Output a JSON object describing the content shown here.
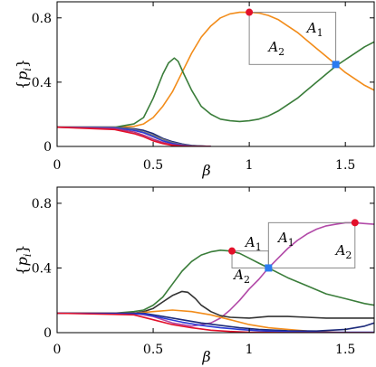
{
  "chart_data": [
    {
      "type": "line",
      "xlabel": "β",
      "ylabel": "{p_i}",
      "xlim": [
        0,
        1.65
      ],
      "ylim": [
        0,
        0.9
      ],
      "xticks": [
        "0",
        "0.5",
        "1",
        "1.5"
      ],
      "yticks": [
        "0",
        "0.4",
        "0.8"
      ],
      "grid": false,
      "series": [
        {
          "color": "#f28c1a",
          "x": [
            0,
            0.3,
            0.4,
            0.45,
            0.5,
            0.55,
            0.6,
            0.65,
            0.7,
            0.75,
            0.8,
            0.85,
            0.9,
            0.95,
            1.0,
            1.05,
            1.1,
            1.15,
            1.2,
            1.25,
            1.3,
            1.35,
            1.4,
            1.45,
            1.5,
            1.55,
            1.6,
            1.65
          ],
          "y": [
            0.12,
            0.12,
            0.125,
            0.14,
            0.18,
            0.25,
            0.34,
            0.46,
            0.58,
            0.68,
            0.75,
            0.8,
            0.825,
            0.835,
            0.835,
            0.83,
            0.815,
            0.79,
            0.75,
            0.71,
            0.66,
            0.61,
            0.56,
            0.51,
            0.46,
            0.42,
            0.38,
            0.35
          ]
        },
        {
          "color": "#3a7d3a",
          "x": [
            0,
            0.3,
            0.4,
            0.45,
            0.5,
            0.55,
            0.58,
            0.61,
            0.63,
            0.66,
            0.7,
            0.75,
            0.8,
            0.85,
            0.9,
            0.95,
            1.0,
            1.05,
            1.1,
            1.15,
            1.2,
            1.25,
            1.3,
            1.35,
            1.4,
            1.45,
            1.5,
            1.55,
            1.6,
            1.65
          ],
          "y": [
            0.12,
            0.12,
            0.14,
            0.18,
            0.3,
            0.45,
            0.52,
            0.55,
            0.53,
            0.45,
            0.35,
            0.25,
            0.2,
            0.17,
            0.16,
            0.155,
            0.16,
            0.17,
            0.19,
            0.22,
            0.26,
            0.3,
            0.35,
            0.4,
            0.45,
            0.5,
            0.54,
            0.58,
            0.62,
            0.65
          ]
        },
        {
          "color": "#1c2a7a",
          "x": [
            0,
            0.3,
            0.4,
            0.45,
            0.5,
            0.55,
            0.6,
            0.65,
            0.7,
            0.8
          ],
          "y": [
            0.12,
            0.12,
            0.11,
            0.1,
            0.08,
            0.05,
            0.03,
            0.015,
            0.006,
            0.0
          ]
        },
        {
          "color": "#777777",
          "x": [
            0,
            0.3,
            0.4,
            0.45,
            0.5,
            0.55,
            0.6,
            0.65,
            0.7,
            0.8
          ],
          "y": [
            0.12,
            0.12,
            0.105,
            0.09,
            0.07,
            0.045,
            0.025,
            0.012,
            0.005,
            0.0
          ]
        },
        {
          "color": "#2b3bd6",
          "x": [
            0,
            0.3,
            0.4,
            0.45,
            0.5,
            0.55,
            0.6,
            0.65,
            0.7,
            0.8
          ],
          "y": [
            0.12,
            0.115,
            0.1,
            0.085,
            0.06,
            0.035,
            0.018,
            0.008,
            0.003,
            0.0
          ]
        },
        {
          "color": "#b0337d",
          "x": [
            0,
            0.3,
            0.4,
            0.45,
            0.5,
            0.55,
            0.6,
            0.65,
            0.7,
            0.8
          ],
          "y": [
            0.12,
            0.11,
            0.09,
            0.07,
            0.045,
            0.025,
            0.01,
            0.004,
            0.001,
            0.0
          ]
        },
        {
          "color": "#e3102a",
          "x": [
            0,
            0.3,
            0.4,
            0.45,
            0.5,
            0.55,
            0.6,
            0.65,
            0.7,
            0.8
          ],
          "y": [
            0.12,
            0.105,
            0.08,
            0.06,
            0.035,
            0.018,
            0.007,
            0.002,
            0.0,
            0.0
          ]
        }
      ],
      "markers": [
        {
          "shape": "circle",
          "color": "#e3102a",
          "x": 1.0,
          "y": 0.835
        },
        {
          "shape": "square",
          "color": "#2b7bf0",
          "x": 1.45,
          "y": 0.51
        }
      ],
      "boxes": [
        {
          "x0": 1.0,
          "x1": 1.45,
          "y0": 0.51,
          "y1": 0.835
        }
      ],
      "annotations": [
        {
          "main": "A",
          "sub": "1",
          "x": 1.3,
          "y": 0.71
        },
        {
          "main": "A",
          "sub": "2",
          "x": 1.1,
          "y": 0.59
        }
      ]
    },
    {
      "type": "line",
      "xlabel": "β",
      "ylabel": "{p_i}",
      "xlim": [
        0,
        1.65
      ],
      "ylim": [
        0,
        0.9
      ],
      "xticks": [
        "0",
        "0.5",
        "1",
        "1.5"
      ],
      "yticks": [
        "0",
        "0.4",
        "0.8"
      ],
      "grid": false,
      "series": [
        {
          "color": "#3a7d3a",
          "x": [
            0,
            0.3,
            0.4,
            0.45,
            0.5,
            0.55,
            0.6,
            0.65,
            0.7,
            0.75,
            0.8,
            0.85,
            0.9,
            0.95,
            1.0,
            1.05,
            1.1,
            1.15,
            1.2,
            1.3,
            1.4,
            1.5,
            1.6,
            1.65
          ],
          "y": [
            0.12,
            0.12,
            0.13,
            0.14,
            0.17,
            0.22,
            0.3,
            0.38,
            0.44,
            0.48,
            0.5,
            0.51,
            0.505,
            0.49,
            0.46,
            0.43,
            0.4,
            0.37,
            0.34,
            0.29,
            0.24,
            0.21,
            0.18,
            0.17
          ]
        },
        {
          "color": "#b24aa8",
          "x": [
            0,
            0.4,
            0.5,
            0.6,
            0.7,
            0.8,
            0.85,
            0.9,
            0.95,
            1.0,
            1.05,
            1.1,
            1.15,
            1.2,
            1.25,
            1.3,
            1.35,
            1.4,
            1.45,
            1.5,
            1.55,
            1.6,
            1.65
          ],
          "y": [
            0.12,
            0.12,
            0.1,
            0.06,
            0.04,
            0.06,
            0.09,
            0.14,
            0.2,
            0.27,
            0.33,
            0.4,
            0.46,
            0.52,
            0.57,
            0.61,
            0.64,
            0.66,
            0.67,
            0.68,
            0.68,
            0.675,
            0.67
          ]
        },
        {
          "color": "#333333",
          "x": [
            0,
            0.4,
            0.45,
            0.5,
            0.55,
            0.6,
            0.65,
            0.68,
            0.72,
            0.75,
            0.8,
            0.85,
            0.9,
            1.0,
            1.1,
            1.2,
            1.3,
            1.4,
            1.5,
            1.6,
            1.65
          ],
          "y": [
            0.12,
            0.12,
            0.13,
            0.15,
            0.19,
            0.23,
            0.255,
            0.25,
            0.21,
            0.17,
            0.13,
            0.105,
            0.095,
            0.09,
            0.1,
            0.1,
            0.095,
            0.09,
            0.09,
            0.09,
            0.09
          ]
        },
        {
          "color": "#f28c1a",
          "x": [
            0,
            0.4,
            0.5,
            0.6,
            0.7,
            0.8,
            0.9,
            1.0,
            1.1,
            1.2,
            1.3,
            1.4,
            1.5,
            1.6,
            1.65
          ],
          "y": [
            0.12,
            0.12,
            0.13,
            0.14,
            0.13,
            0.11,
            0.08,
            0.05,
            0.03,
            0.02,
            0.01,
            0.005,
            0.0,
            0.0,
            0.0
          ]
        },
        {
          "color": "#1c2a7a",
          "x": [
            0,
            0.45,
            0.55,
            0.65,
            0.75,
            0.85,
            0.95,
            1.05,
            1.2,
            1.35,
            1.5,
            1.6,
            1.65
          ],
          "y": [
            0.12,
            0.12,
            0.1,
            0.08,
            0.06,
            0.045,
            0.03,
            0.02,
            0.012,
            0.01,
            0.02,
            0.04,
            0.06
          ]
        },
        {
          "color": "#2b3bd6",
          "x": [
            0,
            0.45,
            0.55,
            0.65,
            0.75,
            0.85,
            0.95,
            1.05,
            1.2,
            1.35,
            1.5,
            1.65
          ],
          "y": [
            0.12,
            0.115,
            0.09,
            0.065,
            0.045,
            0.03,
            0.02,
            0.012,
            0.006,
            0.003,
            0.002,
            0.002
          ]
        },
        {
          "color": "#e3102a",
          "x": [
            0,
            0.4,
            0.5,
            0.6,
            0.7,
            0.8,
            0.9,
            1.0,
            1.1,
            1.2,
            1.3,
            1.4,
            1.5,
            1.6,
            1.65
          ],
          "y": [
            0.12,
            0.11,
            0.08,
            0.05,
            0.03,
            0.015,
            0.007,
            0.003,
            0.001,
            0.0,
            0.0,
            0.0,
            0.0,
            0.0,
            0.0
          ]
        }
      ],
      "markers": [
        {
          "shape": "circle",
          "color": "#e3102a",
          "x": 0.91,
          "y": 0.505
        },
        {
          "shape": "square",
          "color": "#2b7bf0",
          "x": 1.1,
          "y": 0.4
        },
        {
          "shape": "circle",
          "color": "#e3102a",
          "x": 1.55,
          "y": 0.68
        }
      ],
      "boxes": [
        {
          "x0": 0.91,
          "x1": 1.1,
          "y0": 0.4,
          "y1": 0.505
        },
        {
          "x0": 1.1,
          "x1": 1.55,
          "y0": 0.4,
          "y1": 0.68
        }
      ],
      "annotations": [
        {
          "main": "A",
          "sub": "1",
          "x": 0.98,
          "y": 0.53
        },
        {
          "main": "A",
          "sub": "2",
          "x": 0.92,
          "y": 0.33
        },
        {
          "main": "A",
          "sub": "1",
          "x": 1.15,
          "y": 0.56
        },
        {
          "main": "A",
          "sub": "2",
          "x": 1.45,
          "y": 0.48
        }
      ]
    }
  ]
}
